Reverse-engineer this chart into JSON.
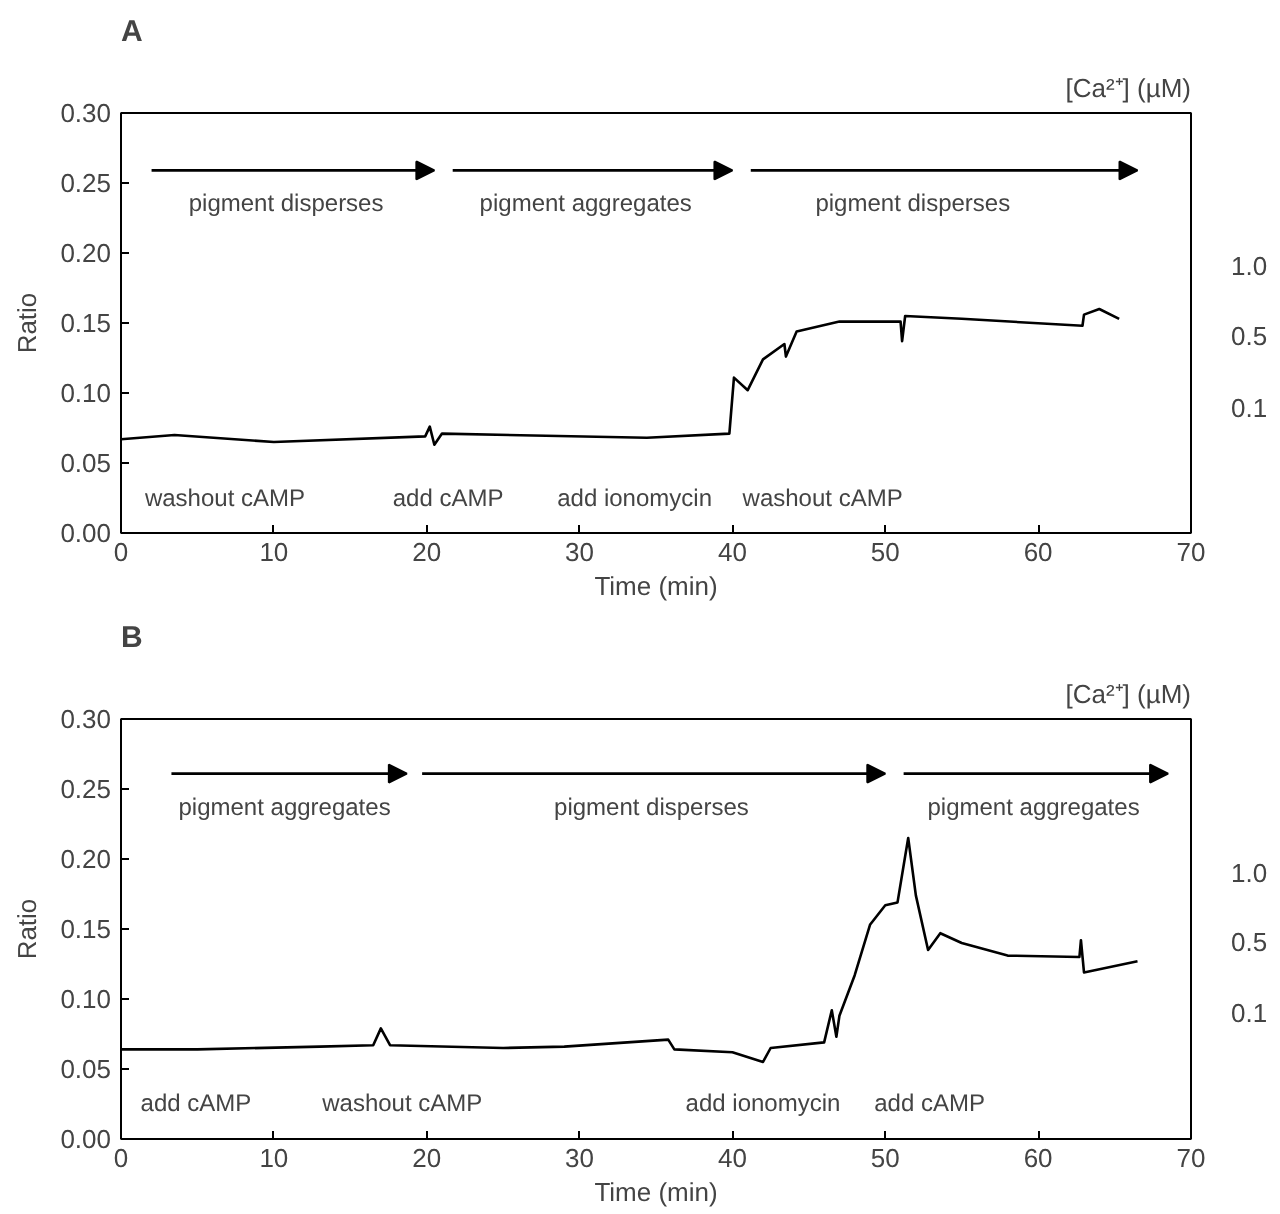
{
  "chart_data": [
    {
      "type": "line",
      "title": "A",
      "xlabel": "Time (min)",
      "ylabel": "Ratio",
      "y2label": "[Ca²⁺] (µM)",
      "x": [
        0,
        3.5,
        10,
        19.9,
        20.2,
        20.5,
        21,
        34.4,
        39.8,
        40.1,
        41,
        42,
        43.4,
        43.5,
        44.2,
        47,
        51,
        51.1,
        51.3,
        55,
        62.9,
        63,
        64,
        65.3
      ],
      "series": [
        {
          "color": "#000000",
          "values": [
            0.067,
            0.07,
            0.065,
            0.069,
            0.076,
            0.063,
            0.071,
            0.068,
            0.071,
            0.111,
            0.102,
            0.124,
            0.135,
            0.126,
            0.144,
            0.151,
            0.151,
            0.137,
            0.155,
            0.153,
            0.148,
            0.156,
            0.16,
            0.153
          ]
        }
      ],
      "xlim": [
        0,
        70
      ],
      "xticks": [
        0,
        10,
        20,
        30,
        40,
        50,
        60,
        70
      ],
      "ylim": [
        0,
        0.3
      ],
      "yticks": [
        {
          "value": 0,
          "label": "0.00"
        },
        {
          "value": 0.05,
          "label": "0.05"
        },
        {
          "value": 0.1,
          "label": "0.10"
        },
        {
          "value": 0.15,
          "label": "0.15"
        },
        {
          "value": 0.2,
          "label": "0.20"
        },
        {
          "value": 0.25,
          "label": "0.25"
        },
        {
          "value": 0.3,
          "label": "0.30"
        }
      ],
      "annotations": [
        "pigment disperses",
        "pigment aggregates",
        "pigment disperses",
        "washout cAMP",
        "add cAMP",
        "add ionomycin",
        "washout cAMP",
        "1.0",
        "0.5",
        "0.1"
      ],
      "grid": false,
      "marker": "none",
      "line_style": "solid"
    },
    {
      "type": "line",
      "title": "B",
      "xlabel": "Time (min)",
      "ylabel": "Ratio",
      "y2label": "[Ca²⁺] (µM)",
      "x": [
        0,
        5,
        13,
        16.5,
        17,
        17.6,
        25,
        29,
        35.8,
        36.2,
        40,
        42,
        42.5,
        46,
        46.5,
        46.8,
        47,
        48,
        49,
        50,
        50.8,
        51.3,
        51.5,
        52,
        52.8,
        53.6,
        55,
        58,
        62.7,
        62.8,
        63,
        66.5
      ],
      "series": [
        {
          "color": "#000000",
          "values": [
            0.064,
            0.064,
            0.066,
            0.067,
            0.079,
            0.067,
            0.065,
            0.066,
            0.071,
            0.064,
            0.062,
            0.055,
            0.065,
            0.069,
            0.092,
            0.073,
            0.088,
            0.117,
            0.153,
            0.167,
            0.169,
            0.202,
            0.215,
            0.174,
            0.135,
            0.147,
            0.14,
            0.131,
            0.13,
            0.142,
            0.119,
            0.127
          ]
        }
      ],
      "xlim": [
        0,
        70
      ],
      "xticks": [
        0,
        10,
        20,
        30,
        40,
        50,
        60,
        70
      ],
      "ylim": [
        0,
        0.3
      ],
      "yticks": [
        {
          "value": 0,
          "label": "0.00"
        },
        {
          "value": 0.05,
          "label": "0.05"
        },
        {
          "value": 0.1,
          "label": "0.10"
        },
        {
          "value": 0.15,
          "label": "0.15"
        },
        {
          "value": 0.2,
          "label": "0.20"
        },
        {
          "value": 0.25,
          "label": "0.25"
        },
        {
          "value": 0.3,
          "label": "0.30"
        }
      ],
      "annotations": [
        "pigment aggregates",
        "pigment disperses",
        "pigment aggregates",
        "add cAMP",
        "washout cAMP",
        "add ionomycin",
        "add cAMP",
        "1.0",
        "0.5",
        "0.1"
      ],
      "grid": false,
      "marker": "none",
      "line_style": "solid"
    }
  ]
}
